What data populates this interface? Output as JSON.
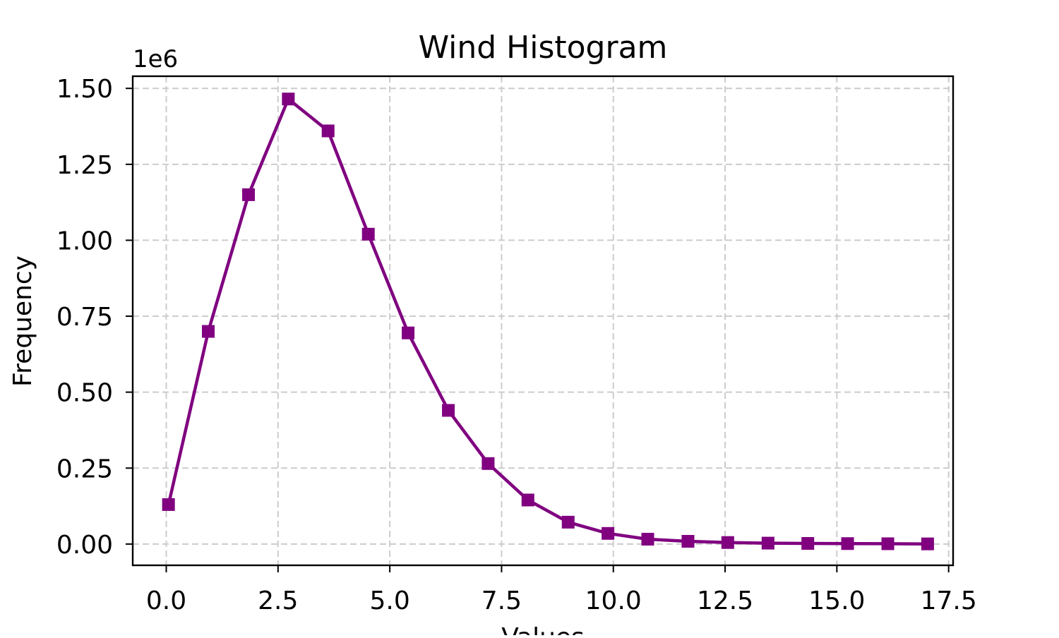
{
  "chart_data": {
    "type": "line",
    "title": "Wind Histogram",
    "xlabel": "Values",
    "ylabel": "Frequency",
    "y_offset_label": "1e6",
    "xlim": [
      -0.75,
      17.6
    ],
    "ylim": [
      -0.07,
      1.54
    ],
    "y_scale": 1000000,
    "xticks": [
      0.0,
      2.5,
      5.0,
      7.5,
      10.0,
      12.5,
      15.0,
      17.5
    ],
    "xtick_labels": [
      "0.0",
      "2.5",
      "5.0",
      "7.5",
      "10.0",
      "12.5",
      "15.0",
      "17.5"
    ],
    "yticks": [
      0.0,
      0.25,
      0.5,
      0.75,
      1.0,
      1.25,
      1.5
    ],
    "ytick_labels": [
      "0.00",
      "0.25",
      "0.50",
      "0.75",
      "1.00",
      "1.25",
      "1.50"
    ],
    "grid": true,
    "grid_style": "dashed",
    "color": "#800080",
    "marker": "square",
    "series": [
      {
        "x": [
          0.05,
          0.94,
          1.84,
          2.73,
          3.62,
          4.52,
          5.41,
          6.31,
          7.2,
          8.09,
          8.99,
          9.88,
          10.77,
          11.67,
          12.56,
          13.46,
          14.35,
          15.24,
          16.14,
          17.03
        ],
        "values": [
          130000,
          700000,
          1150000,
          1465000,
          1360000,
          1020000,
          695000,
          440000,
          265000,
          145000,
          72000,
          35000,
          16000,
          9000,
          5000,
          3000,
          2000,
          1500,
          1000,
          500
        ]
      }
    ]
  }
}
